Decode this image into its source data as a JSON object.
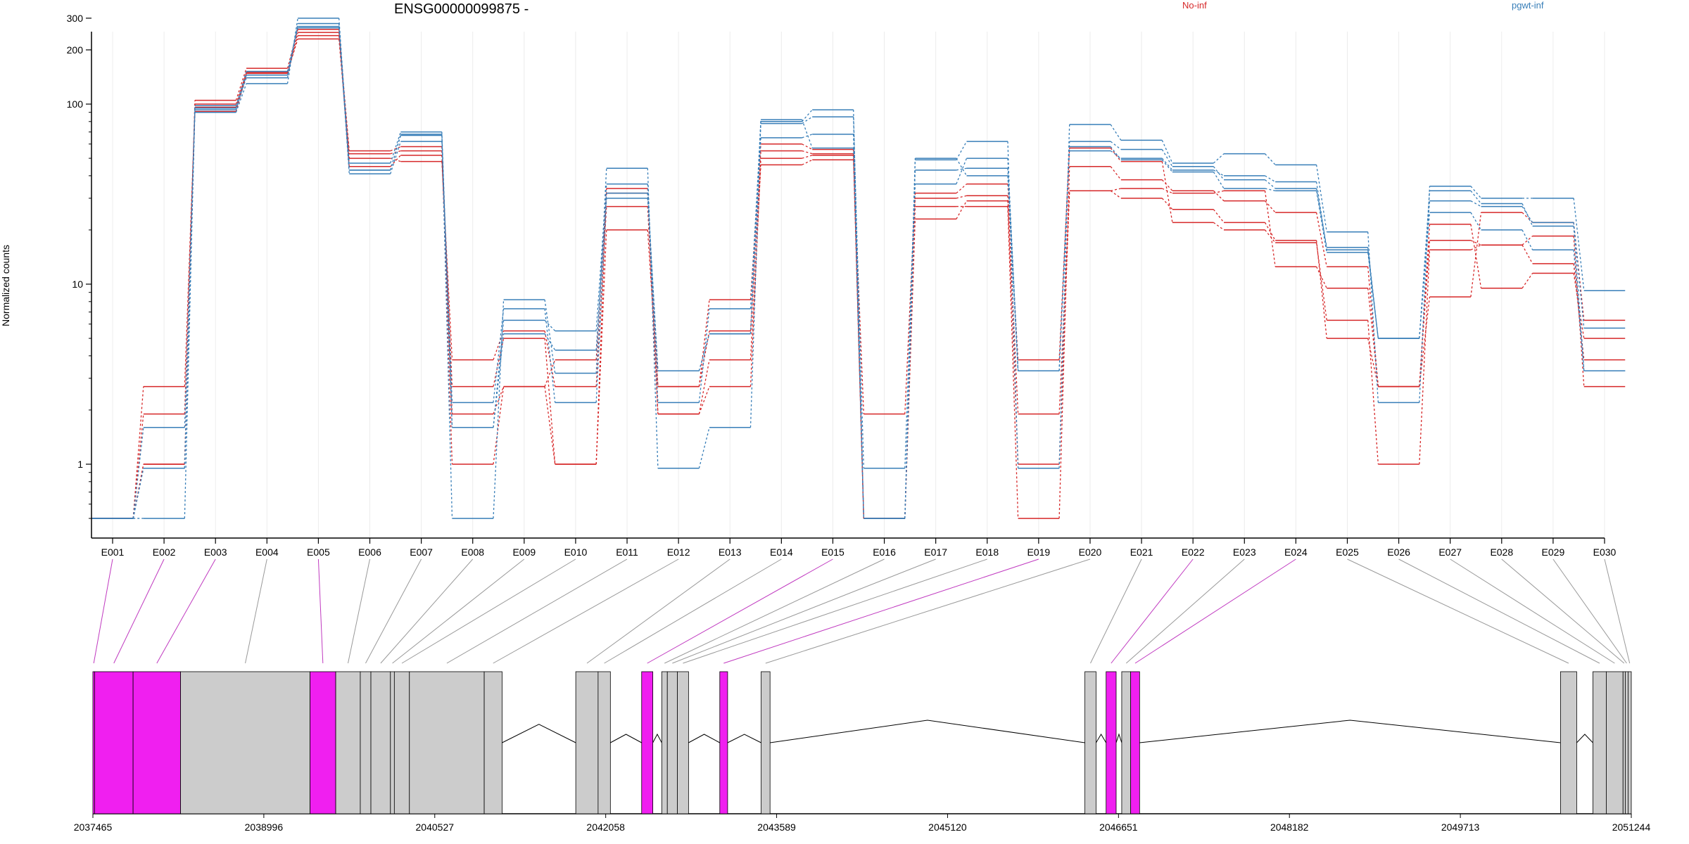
{
  "chart_data": {
    "type": "line",
    "title": "ENSG00000099875 -",
    "ylabel": "Normalized counts",
    "xlabel": "",
    "yscale": "log",
    "ylim": [
      0.5,
      330
    ],
    "y_ticks": [
      1,
      10,
      100,
      200,
      300
    ],
    "grid": "vertical",
    "legend_placement": "top-right",
    "legend": [
      {
        "name": "No-inf",
        "color": "#d62728"
      },
      {
        "name": "pgwt-inf",
        "color": "#377eb8"
      }
    ],
    "categories": [
      "E001",
      "E002",
      "E003",
      "E004",
      "E005",
      "E006",
      "E007",
      "E008",
      "E009",
      "E010",
      "E011",
      "E012",
      "E013",
      "E014",
      "E015",
      "E016",
      "E017",
      "E018",
      "E019",
      "E020",
      "E021",
      "E022",
      "E023",
      "E024",
      "E025",
      "E026",
      "E027",
      "E028",
      "E029",
      "E030"
    ],
    "series": [
      {
        "group": "No-inf",
        "color": "#d62728",
        "values": [
          0.5,
          2.7,
          91,
          145,
          250,
          55,
          58,
          1.0,
          2.7,
          1.0,
          20,
          2.7,
          5.5,
          55,
          53,
          0.5,
          27,
          27,
          0.5,
          45,
          38,
          33,
          29,
          25,
          12.5,
          2.7,
          8.5,
          25,
          22,
          6.3
        ]
      },
      {
        "group": "No-inf",
        "color": "#d62728",
        "values": [
          0.5,
          1.9,
          96,
          150,
          230,
          50,
          48,
          3.8,
          5.5,
          2.7,
          27,
          1.9,
          3.8,
          46,
          49,
          1.9,
          32,
          36,
          3.8,
          57,
          48,
          22,
          20,
          17,
          6.3,
          1.0,
          15.5,
          16.5,
          13,
          3.8
        ]
      },
      {
        "group": "No-inf",
        "color": "#d62728",
        "values": [
          0.5,
          1.0,
          105,
          158,
          260,
          45,
          52,
          1.9,
          2.7,
          3.8,
          32,
          2.7,
          8.2,
          60,
          56,
          0.5,
          30,
          31,
          1.9,
          33,
          30,
          26,
          22,
          17.5,
          5.0,
          2.7,
          17.5,
          16.5,
          18.5,
          2.7
        ]
      },
      {
        "group": "No-inf",
        "color": "#d62728",
        "values": [
          0.5,
          1.0,
          100,
          148,
          240,
          53,
          55,
          2.7,
          5.0,
          1.0,
          34,
          1.9,
          2.7,
          50,
          52,
          0.5,
          23,
          29,
          1.0,
          33,
          34,
          32,
          33,
          12.5,
          9.5,
          2.7,
          21.5,
          9.5,
          11.5,
          5.0
        ]
      },
      {
        "group": "pgwt-inf",
        "color": "#377eb8",
        "values": [
          0.5,
          0.95,
          90,
          130,
          300,
          43,
          68,
          0.5,
          8.2,
          3.2,
          44,
          0.95,
          1.6,
          80,
          93,
          0.5,
          49,
          62,
          0.95,
          77,
          63,
          47,
          53,
          46,
          19.5,
          2.2,
          35,
          30,
          30,
          9.2
        ]
      },
      {
        "group": "pgwt-inf",
        "color": "#377eb8",
        "values": [
          0.5,
          1.6,
          95,
          140,
          280,
          47,
          70,
          1.6,
          6.3,
          5.5,
          36,
          2.2,
          7.3,
          78,
          85,
          0.95,
          43,
          44,
          3.3,
          62,
          56,
          45,
          38,
          34,
          16,
          5.0,
          29,
          27,
          22,
          5.7
        ]
      },
      {
        "group": "pgwt-inf",
        "color": "#377eb8",
        "values": [
          0.5,
          0.5,
          98,
          152,
          265,
          41,
          62,
          2.2,
          7.3,
          2.2,
          30,
          3.3,
          5.3,
          65,
          68,
          0.5,
          50,
          40,
          3.3,
          58,
          49,
          42,
          34,
          33,
          15,
          5.0,
          25,
          20,
          15.5,
          3.3
        ]
      },
      {
        "group": "pgwt-inf",
        "color": "#377eb8",
        "values": [
          0.5,
          0.95,
          93,
          145,
          270,
          43,
          67,
          1.6,
          5.3,
          4.3,
          32,
          3.3,
          5.3,
          82,
          57,
          0.5,
          36,
          50,
          3.3,
          55,
          50,
          43,
          40,
          37,
          15.5,
          5.0,
          33,
          28,
          21,
          3.3
        ]
      }
    ],
    "gene_model": {
      "coordinate_ticks": [
        "2037465",
        "2038996",
        "2040527",
        "2042058",
        "2043589",
        "2045120",
        "2046651",
        "2048182",
        "2049713",
        "2051244"
      ],
      "genomic_range": [
        2037465,
        2051244
      ],
      "highlight_color": "#f01ff0",
      "exon_color": "#cccccc",
      "exons": [
        {
          "id": "E001",
          "start": 2037465,
          "end": 2037480,
          "highlight": true
        },
        {
          "id": "E002",
          "start": 2037480,
          "end": 2037825,
          "highlight": true
        },
        {
          "id": "E003",
          "start": 2037825,
          "end": 2038250,
          "highlight": true
        },
        {
          "id": "E004",
          "start": 2038250,
          "end": 2039410,
          "highlight": false
        },
        {
          "id": "E005",
          "start": 2039410,
          "end": 2039640,
          "highlight": true
        },
        {
          "id": "E006",
          "start": 2039640,
          "end": 2039860,
          "highlight": false
        },
        {
          "id": "E007",
          "start": 2039860,
          "end": 2039955,
          "highlight": false
        },
        {
          "id": "E008",
          "start": 2039955,
          "end": 2040130,
          "highlight": false
        },
        {
          "id": "E009",
          "start": 2040130,
          "end": 2040165,
          "highlight": false
        },
        {
          "id": "E010",
          "start": 2040165,
          "end": 2040300,
          "highlight": false
        },
        {
          "id": "E011",
          "start": 2040300,
          "end": 2040970,
          "highlight": false
        },
        {
          "id": "E012",
          "start": 2040970,
          "end": 2041130,
          "highlight": false
        },
        {
          "id": "E013",
          "start": 2041790,
          "end": 2041990,
          "highlight": false
        },
        {
          "id": "E014",
          "start": 2041990,
          "end": 2042100,
          "highlight": false
        },
        {
          "id": "E015",
          "start": 2042380,
          "end": 2042480,
          "highlight": true
        },
        {
          "id": "E016",
          "start": 2042560,
          "end": 2042610,
          "highlight": false
        },
        {
          "id": "E017",
          "start": 2042610,
          "end": 2042700,
          "highlight": false
        },
        {
          "id": "E018",
          "start": 2042700,
          "end": 2042800,
          "highlight": false
        },
        {
          "id": "E019",
          "start": 2043080,
          "end": 2043150,
          "highlight": true
        },
        {
          "id": "E020",
          "start": 2043450,
          "end": 2043530,
          "highlight": false
        },
        {
          "id": "E021",
          "start": 2046350,
          "end": 2046450,
          "highlight": false
        },
        {
          "id": "E022",
          "start": 2046540,
          "end": 2046630,
          "highlight": true
        },
        {
          "id": "E023",
          "start": 2046680,
          "end": 2046760,
          "highlight": false
        },
        {
          "id": "E024",
          "start": 2046760,
          "end": 2046840,
          "highlight": true
        },
        {
          "id": "E025",
          "start": 2050610,
          "end": 2050755,
          "highlight": false
        },
        {
          "id": "E026",
          "start": 2050900,
          "end": 2051020,
          "highlight": false
        },
        {
          "id": "E027",
          "start": 2051020,
          "end": 2051170,
          "highlight": false
        },
        {
          "id": "E028",
          "start": 2051170,
          "end": 2051190,
          "highlight": false
        },
        {
          "id": "E029",
          "start": 2051190,
          "end": 2051215,
          "highlight": false
        },
        {
          "id": "E030",
          "start": 2051215,
          "end": 2051244,
          "highlight": false
        }
      ]
    }
  }
}
